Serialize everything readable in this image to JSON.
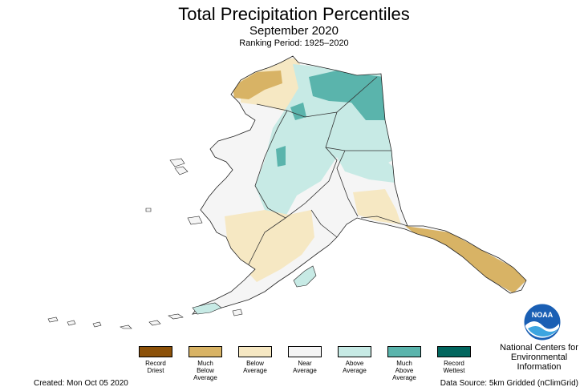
{
  "header": {
    "title": "Total Precipitation Percentiles",
    "subtitle": "September 2020",
    "ranking_period": "Ranking Period: 1925–2020"
  },
  "legend": {
    "items": [
      {
        "label_line1": "Record",
        "label_line2": "Driest",
        "label_line3": "",
        "color": "#8c5109"
      },
      {
        "label_line1": "Much",
        "label_line2": "Below",
        "label_line3": "Average",
        "color": "#d8b365"
      },
      {
        "label_line1": "Below",
        "label_line2": "Average",
        "label_line3": "",
        "color": "#f6e8c3"
      },
      {
        "label_line1": "Near",
        "label_line2": "Average",
        "label_line3": "",
        "color": "#f5f5f5"
      },
      {
        "label_line1": "Above",
        "label_line2": "Average",
        "label_line3": "",
        "color": "#c7eae5"
      },
      {
        "label_line1": "Much",
        "label_line2": "Above",
        "label_line3": "Average",
        "color": "#5ab4ac"
      },
      {
        "label_line1": "Record",
        "label_line2": "Wettest",
        "label_line3": "",
        "color": "#01665e"
      }
    ]
  },
  "footer": {
    "created": "Created: Mon Oct 05 2020",
    "source": "Data Source: 5km Gridded (nClimGrid)"
  },
  "agency": {
    "logo_text": "NOAA",
    "line1": "National Centers for",
    "line2": "Environmental",
    "line3": "Information"
  },
  "map_colors": {
    "near": "#f5f5f5",
    "above": "#c7eae5",
    "much_above": "#5ab4ac",
    "below": "#f6e8c3",
    "much_below": "#d8b365",
    "outline": "#222222"
  }
}
